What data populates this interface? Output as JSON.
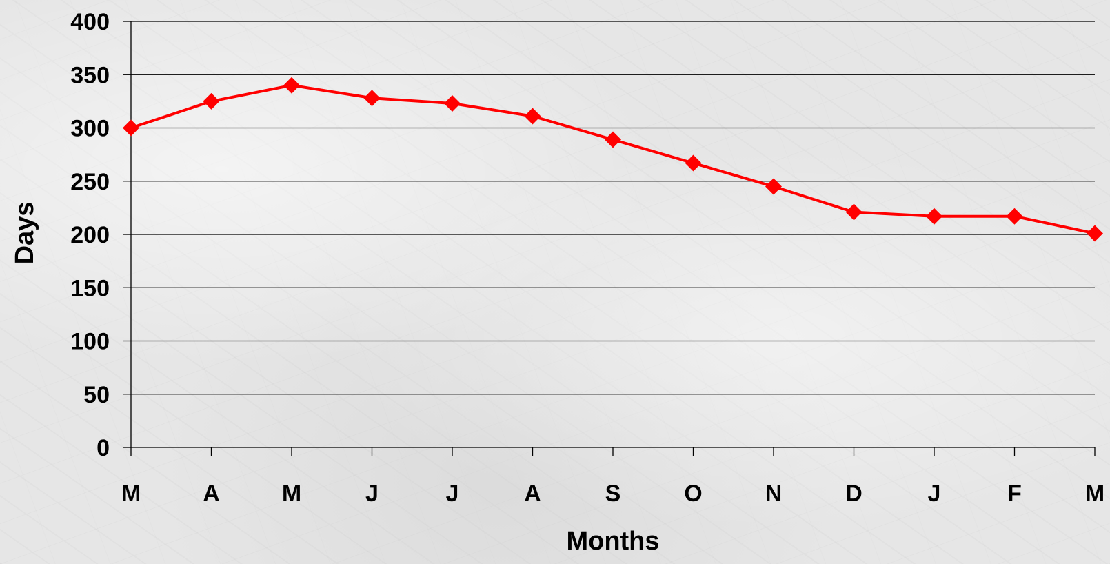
{
  "chart_data": {
    "type": "line",
    "title": "",
    "xlabel": "Months",
    "ylabel": "Days",
    "categories": [
      "M",
      "A",
      "M",
      "J",
      "J",
      "A",
      "S",
      "O",
      "N",
      "D",
      "J",
      "F",
      "M"
    ],
    "series": [
      {
        "values": [
          300,
          325,
          340,
          328,
          323,
          311,
          289,
          267,
          245,
          221,
          217,
          217,
          201
        ],
        "color": "#ff0000",
        "marker": "diamond"
      }
    ],
    "ylim": [
      0,
      400
    ],
    "yticks": [
      "0",
      "50",
      "100",
      "150",
      "200",
      "250",
      "300",
      "350",
      "400"
    ],
    "grid": "horizontal",
    "legend": "none"
  }
}
